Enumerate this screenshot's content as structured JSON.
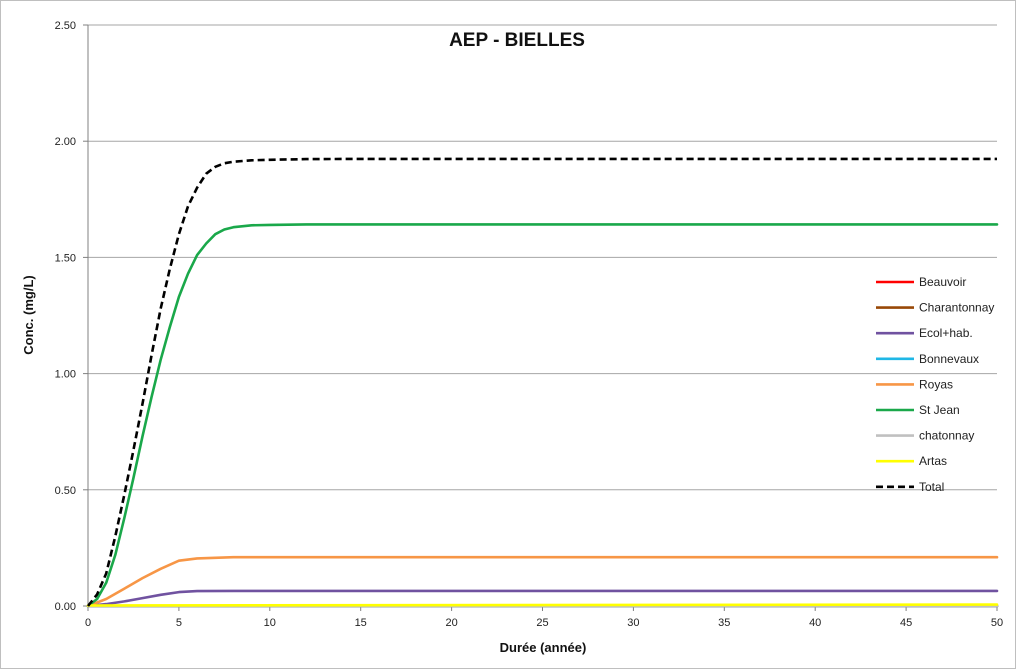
{
  "chart_data": {
    "type": "line",
    "title": "AEP - BIELLES",
    "xlabel": "Durée (année)",
    "ylabel": "Conc. (mg/L)",
    "xlim": [
      0,
      50
    ],
    "ylim": [
      0,
      2.5
    ],
    "x_ticks": [
      "0",
      "5",
      "10",
      "15",
      "20",
      "25",
      "30",
      "35",
      "40",
      "45",
      "50"
    ],
    "y_ticks": [
      "0.00",
      "0.50",
      "1.00",
      "1.50",
      "2.00",
      "2.50"
    ],
    "grid": "horizontal",
    "legend_position": "right",
    "series": [
      {
        "name": "Beauvoir",
        "color": "#ff0000",
        "dash": false,
        "x": [
          0,
          50
        ],
        "y": [
          0,
          0
        ]
      },
      {
        "name": "Charantonnay",
        "color": "#984807",
        "dash": false,
        "x": [
          0,
          50
        ],
        "y": [
          0,
          0
        ]
      },
      {
        "name": "Ecol+hab.",
        "color": "#7052a0",
        "dash": false,
        "x": [
          0,
          1,
          2,
          3,
          4,
          5,
          6,
          8,
          10,
          50
        ],
        "y": [
          0,
          0.008,
          0.02,
          0.034,
          0.048,
          0.06,
          0.064,
          0.065,
          0.065,
          0.065
        ]
      },
      {
        "name": "Bonnevaux",
        "color": "#1fb7e6",
        "dash": false,
        "x": [
          0,
          50
        ],
        "y": [
          0,
          0
        ]
      },
      {
        "name": "Royas",
        "color": "#f79646",
        "dash": false,
        "x": [
          0,
          1,
          2,
          3,
          4,
          5,
          6,
          8,
          10,
          50
        ],
        "y": [
          0,
          0.03,
          0.075,
          0.12,
          0.16,
          0.195,
          0.205,
          0.21,
          0.21,
          0.21
        ]
      },
      {
        "name": "St Jean",
        "color": "#1aa84a",
        "dash": false,
        "x": [
          0,
          0.5,
          1,
          1.5,
          2,
          2.5,
          3,
          3.5,
          4,
          4.5,
          5,
          5.5,
          6,
          6.5,
          7,
          7.5,
          8,
          9,
          10,
          12,
          15,
          50
        ],
        "y": [
          0,
          0.03,
          0.1,
          0.22,
          0.38,
          0.55,
          0.73,
          0.9,
          1.06,
          1.2,
          1.33,
          1.43,
          1.51,
          1.56,
          1.6,
          1.62,
          1.63,
          1.638,
          1.64,
          1.642,
          1.642,
          1.642
        ]
      },
      {
        "name": "chatonnay",
        "color": "#c0c0c0",
        "dash": false,
        "x": [
          0,
          50
        ],
        "y": [
          0,
          0
        ]
      },
      {
        "name": "Artas",
        "color": "#ffff00",
        "dash": false,
        "x": [
          0,
          50
        ],
        "y": [
          0.002,
          0.006
        ]
      },
      {
        "name": "Total",
        "color": "#000000",
        "dash": true,
        "x": [
          0,
          0.5,
          1,
          1.5,
          2,
          2.5,
          3,
          3.5,
          4,
          4.5,
          5,
          5.5,
          6,
          6.5,
          7,
          7.5,
          8,
          9,
          10,
          12,
          15,
          50
        ],
        "y": [
          0,
          0.05,
          0.14,
          0.3,
          0.48,
          0.67,
          0.87,
          1.08,
          1.28,
          1.45,
          1.6,
          1.72,
          1.8,
          1.86,
          1.89,
          1.905,
          1.912,
          1.918,
          1.92,
          1.923,
          1.924,
          1.924
        ]
      }
    ]
  }
}
